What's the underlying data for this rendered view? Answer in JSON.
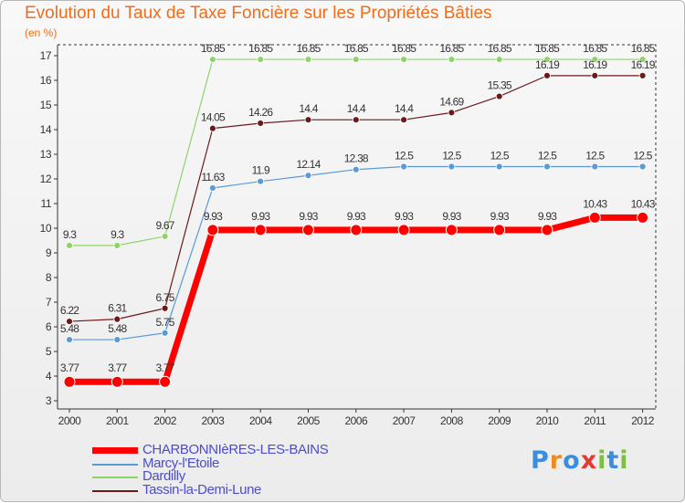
{
  "header": {
    "title": "Evolution du Taux de Taxe Foncière sur les Propriétés Bâties",
    "unit": "(en %)"
  },
  "logo": {
    "chars": [
      "P",
      "r",
      "o",
      "x",
      "i",
      "t",
      "i"
    ],
    "colors": [
      "#3b8ddd",
      "#ef8a1c",
      "#3b8ddd",
      "#e53935",
      "#7fbf3f",
      "#3b8ddd",
      "#7fbf3f"
    ]
  },
  "chart_data": {
    "type": "line",
    "title": "Evolution du Taux de Taxe Foncière sur les Propriétés Bâties",
    "ylabel": "(en %)",
    "xlabel": "",
    "x": [
      "2000",
      "2001",
      "2002",
      "2003",
      "2004",
      "2005",
      "2006",
      "2007",
      "2008",
      "2009",
      "2010",
      "2011",
      "2012"
    ],
    "ylim": [
      3,
      17
    ],
    "yticks": [
      3,
      4,
      5,
      6,
      7,
      8,
      9,
      10,
      11,
      12,
      13,
      14,
      15,
      16,
      17
    ],
    "grid": false,
    "legend_position": "bottom-left",
    "series": [
      {
        "name": "Tassin-la-Demi-Lune",
        "color": "#6b1a1a",
        "values": [
          6.22,
          6.31,
          6.75,
          14.05,
          14.26,
          14.4,
          14.4,
          14.4,
          14.69,
          15.35,
          16.19,
          16.19,
          16.19
        ],
        "labels": [
          "6.22",
          "6.31",
          "6.75",
          "14.05",
          "14.26",
          "14.4",
          "14.4",
          "14.4",
          "14.69",
          "15.35",
          "16.19",
          "16.19",
          "16.19"
        ]
      },
      {
        "name": "Dardilly",
        "color": "#8fd46a",
        "values": [
          9.3,
          9.3,
          9.67,
          16.85,
          16.85,
          16.85,
          16.85,
          16.85,
          16.85,
          16.85,
          16.85,
          16.85,
          16.85
        ],
        "labels": [
          "9.3",
          "9.3",
          "9.67",
          "16.85",
          "16.85",
          "16.85",
          "16.85",
          "16.85",
          "16.85",
          "16.85",
          "16.85",
          "16.85",
          "16.85"
        ]
      },
      {
        "name": "Marcy-l'Etoile",
        "color": "#5b9ad4",
        "values": [
          5.48,
          5.48,
          5.75,
          11.63,
          11.9,
          12.14,
          12.38,
          12.5,
          12.5,
          12.5,
          12.5,
          12.5,
          12.5
        ],
        "labels": [
          "5.48",
          "5.48",
          "5.75",
          "11.63",
          "11.9",
          "12.14",
          "12.38",
          "12.5",
          "12.5",
          "12.5",
          "12.5",
          "12.5",
          "12.5"
        ]
      },
      {
        "name": "CHARBONNIèRES-LES-BAINS",
        "color": "#ff0000",
        "values": [
          3.77,
          3.77,
          3.77,
          9.93,
          9.93,
          9.93,
          9.93,
          9.93,
          9.93,
          9.93,
          9.93,
          10.43,
          10.43
        ],
        "labels": [
          "3.77",
          "3.77",
          "3.77",
          "9.93",
          "9.93",
          "9.93",
          "9.93",
          "9.93",
          "9.93",
          "9.93",
          "9.93",
          "10.43",
          "10.43"
        ]
      }
    ],
    "legend": [
      {
        "name": "CHARBONNIèRES-LES-BAINS",
        "color": "#ff0000",
        "bold": true
      },
      {
        "name": "Marcy-l'Etoile",
        "color": "#5b9ad4",
        "bold": false
      },
      {
        "name": "Dardilly",
        "color": "#8fd46a",
        "bold": false
      },
      {
        "name": "Tassin-la-Demi-Lune",
        "color": "#6b1a1a",
        "bold": false
      }
    ]
  }
}
